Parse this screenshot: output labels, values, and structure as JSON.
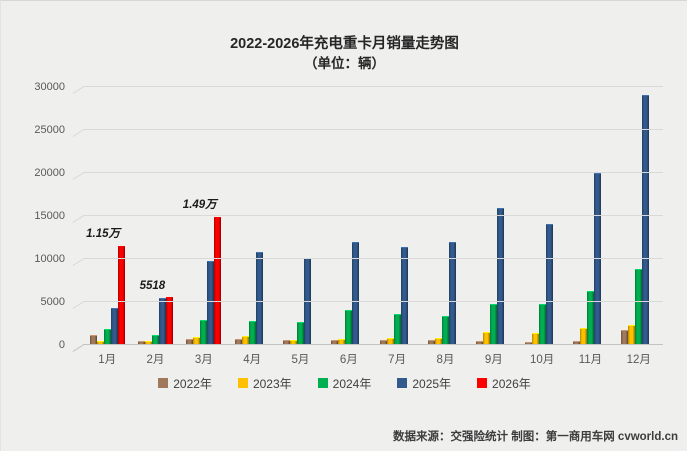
{
  "title": "2022-2026年充电重卡月销量走势图",
  "subtitle": "（单位：辆）",
  "footer": "数据来源：交强险统计 制图：第一商用车网 cvworld.cn",
  "chart_data": {
    "type": "bar",
    "title": "2022-2026年充电重卡月销量走势图",
    "unit_label": "（单位：辆）",
    "categories": [
      "1月",
      "2月",
      "3月",
      "4月",
      "5月",
      "6月",
      "7月",
      "8月",
      "9月",
      "10月",
      "11月",
      "12月"
    ],
    "series": [
      {
        "name": "2022年",
        "color": "#A0795B",
        "values": [
          1150,
          400,
          700,
          650,
          550,
          500,
          500,
          500,
          450,
          300,
          400,
          1700
        ]
      },
      {
        "name": "2023年",
        "color": "#FFC000",
        "values": [
          450,
          450,
          950,
          1000,
          550,
          650,
          800,
          800,
          1450,
          1350,
          1900,
          2300
        ]
      },
      {
        "name": "2024年",
        "color": "#00B050",
        "values": [
          1800,
          1100,
          2850,
          2800,
          2700,
          4100,
          3600,
          3300,
          4750,
          4700,
          6200,
          8800
        ]
      },
      {
        "name": "2025年",
        "color": "#325A8C",
        "values": [
          4300,
          5400,
          9800,
          10800,
          10150,
          12000,
          11400,
          11950,
          15900,
          14100,
          20000,
          29100
        ]
      },
      {
        "name": "2026年",
        "color": "#FE0000",
        "values": [
          11500,
          5518,
          14900,
          null,
          null,
          null,
          null,
          null,
          null,
          null,
          null,
          null
        ]
      }
    ],
    "annotations": [
      {
        "month_index": 0,
        "series": "2026年",
        "text": "1.15万",
        "value": 11500
      },
      {
        "month_index": 1,
        "series": "2026年",
        "text": "5518",
        "value": 5518
      },
      {
        "month_index": 2,
        "series": "2026年",
        "text": "1.49万",
        "value": 14900
      }
    ],
    "y_ticks": [
      0,
      5000,
      10000,
      15000,
      20000,
      25000,
      30000
    ],
    "ylim": [
      0,
      30000
    ],
    "xlabel": "",
    "ylabel": "",
    "grid": true,
    "legend_position": "bottom"
  }
}
